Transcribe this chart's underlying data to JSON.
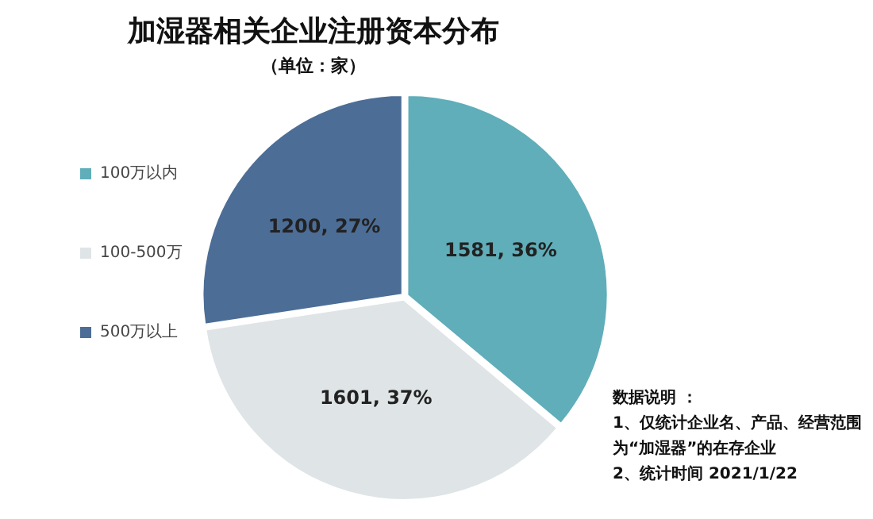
{
  "chart_data": {
    "type": "pie",
    "title": "加湿器相关企业注册资本分布",
    "subtitle": "（单位：家）",
    "categories": [
      "100万以内",
      "100-500万",
      "500万以上"
    ],
    "values": [
      1581,
      1601,
      1200
    ],
    "colors": [
      "#5faeb9",
      "#dfe4e6",
      "#4c6d96"
    ],
    "value_labels": [
      "1581, 36%",
      "1601, 37%",
      "1200, 27%"
    ],
    "legend": "left",
    "annotations": [
      "数据说明 ：",
      "1、仅统计企业名、产品、经营范围",
      "为“加湿器”的在存企业",
      "2、统计时间 2021/1/22"
    ]
  }
}
